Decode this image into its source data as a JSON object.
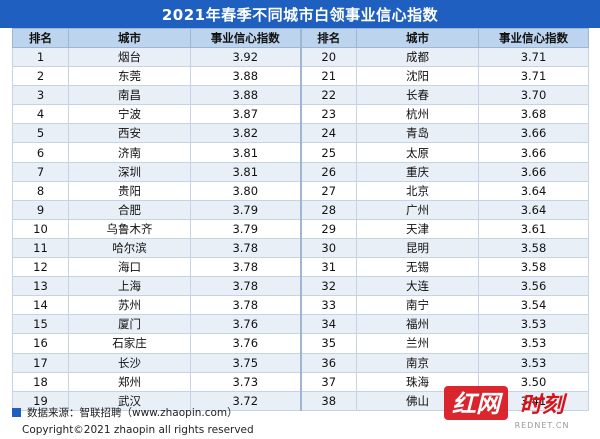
{
  "title": "2021年春季不同城市白领事业信心指数",
  "chart_data": {
    "type": "table",
    "title": "2021年春季不同城市白领事业信心指数",
    "columns": [
      "排名",
      "城市",
      "事业信心指数"
    ],
    "rows": [
      [
        "1",
        "烟台",
        "3.92"
      ],
      [
        "2",
        "东莞",
        "3.88"
      ],
      [
        "3",
        "南昌",
        "3.88"
      ],
      [
        "4",
        "宁波",
        "3.87"
      ],
      [
        "5",
        "西安",
        "3.82"
      ],
      [
        "6",
        "济南",
        "3.81"
      ],
      [
        "7",
        "深圳",
        "3.81"
      ],
      [
        "8",
        "贵阳",
        "3.80"
      ],
      [
        "9",
        "合肥",
        "3.79"
      ],
      [
        "10",
        "乌鲁木齐",
        "3.79"
      ],
      [
        "11",
        "哈尔滨",
        "3.78"
      ],
      [
        "12",
        "海口",
        "3.78"
      ],
      [
        "13",
        "上海",
        "3.78"
      ],
      [
        "14",
        "苏州",
        "3.78"
      ],
      [
        "15",
        "厦门",
        "3.76"
      ],
      [
        "16",
        "石家庄",
        "3.76"
      ],
      [
        "17",
        "长沙",
        "3.75"
      ],
      [
        "18",
        "郑州",
        "3.73"
      ],
      [
        "19",
        "武汉",
        "3.72"
      ],
      [
        "20",
        "成都",
        "3.71"
      ],
      [
        "21",
        "沈阳",
        "3.71"
      ],
      [
        "22",
        "长春",
        "3.70"
      ],
      [
        "23",
        "杭州",
        "3.68"
      ],
      [
        "24",
        "青岛",
        "3.66"
      ],
      [
        "25",
        "太原",
        "3.66"
      ],
      [
        "26",
        "重庆",
        "3.66"
      ],
      [
        "27",
        "北京",
        "3.64"
      ],
      [
        "28",
        "广州",
        "3.64"
      ],
      [
        "29",
        "天津",
        "3.61"
      ],
      [
        "30",
        "昆明",
        "3.58"
      ],
      [
        "31",
        "无锡",
        "3.58"
      ],
      [
        "32",
        "大连",
        "3.56"
      ],
      [
        "33",
        "南宁",
        "3.54"
      ],
      [
        "34",
        "福州",
        "3.53"
      ],
      [
        "35",
        "兰州",
        "3.53"
      ],
      [
        "36",
        "南京",
        "3.53"
      ],
      [
        "37",
        "珠海",
        "3.50"
      ],
      [
        "38",
        "佛山",
        "3.41"
      ]
    ]
  },
  "footer": {
    "source": "数据来源：智联招聘（www.zhaopin.com）",
    "copyright": "Copyright©2021 zhaopin all rights reserved"
  },
  "watermark": {
    "brand": "红网",
    "suffix": "时刻",
    "url": "REDNET.CN"
  },
  "colors": {
    "title_bg": "#1f5fbf",
    "header_bg": "#bcd4ee",
    "stripe": "#e9eff7",
    "logo_red": "#d7141a"
  }
}
